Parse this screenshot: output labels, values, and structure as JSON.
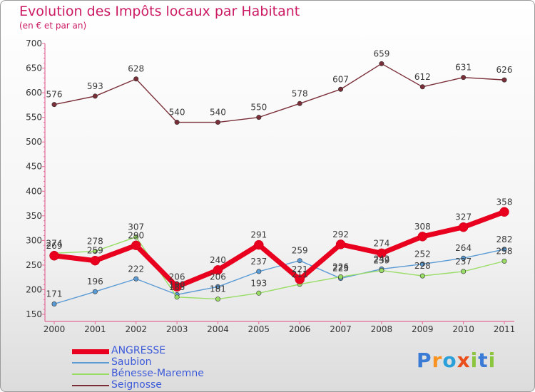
{
  "header": {
    "title": "Evolution des Impôts locaux par Habitant",
    "subtitle": "(en € et par an)"
  },
  "logo": {
    "text": "Proxiti",
    "colors": [
      "#3a7bd5",
      "#f7931e",
      "#2b9fd9",
      "#e94e1b",
      "#8cc63f",
      "#3a7bd5",
      "#8cc63f"
    ]
  },
  "chart_data": {
    "type": "line",
    "title": "Evolution des Impôts locaux par Habitant",
    "subtitle": "(en € et par an)",
    "xlabel": "",
    "ylabel": "",
    "x": [
      "2000",
      "2001",
      "2002",
      "2003",
      "2004",
      "2005",
      "2006",
      "2007",
      "2008",
      "2009",
      "2010",
      "2011"
    ],
    "ylim": [
      150,
      700
    ],
    "yticks": [
      "150",
      "200",
      "250",
      "300",
      "350",
      "400",
      "450",
      "500",
      "550",
      "600",
      "650",
      "700"
    ],
    "grid": false,
    "legend_position": "bottom-left",
    "series": [
      {
        "name": "ANGRESSE",
        "color": "#e8001e",
        "values": [
          269,
          259,
          290,
          206,
          240,
          291,
          221,
          292,
          274,
          308,
          327,
          358
        ],
        "labels": [
          "269",
          "259",
          "290",
          "206",
          "240",
          "291",
          "221",
          "292",
          "274",
          "308",
          "327",
          "358"
        ]
      },
      {
        "name": "Saubion",
        "color": "#5b9bd5",
        "values": [
          171,
          196,
          222,
          190,
          206,
          237,
          259,
          223,
          242,
          252,
          264,
          282
        ],
        "labels": [
          "171",
          "196",
          "222",
          "190",
          "206",
          "237",
          "259",
          "223",
          "242",
          "252",
          "264",
          "282"
        ]
      },
      {
        "name": "Bénesse-Maremne",
        "color": "#99dd66",
        "values": [
          274,
          278,
          307,
          185,
          181,
          193,
          211,
          226,
          239,
          228,
          237,
          258
        ],
        "labels": [
          "274",
          "278",
          "307",
          "185",
          "181",
          "193",
          "211",
          "226",
          "239",
          "228",
          "237",
          "258"
        ]
      },
      {
        "name": "Seignosse",
        "color": "#7a2e38",
        "values": [
          576,
          593,
          628,
          540,
          540,
          550,
          578,
          607,
          659,
          612,
          631,
          626
        ],
        "labels": [
          "576",
          "593",
          "628",
          "540",
          "540",
          "550",
          "578",
          "607",
          "659",
          "612",
          "631",
          "626"
        ]
      }
    ]
  }
}
